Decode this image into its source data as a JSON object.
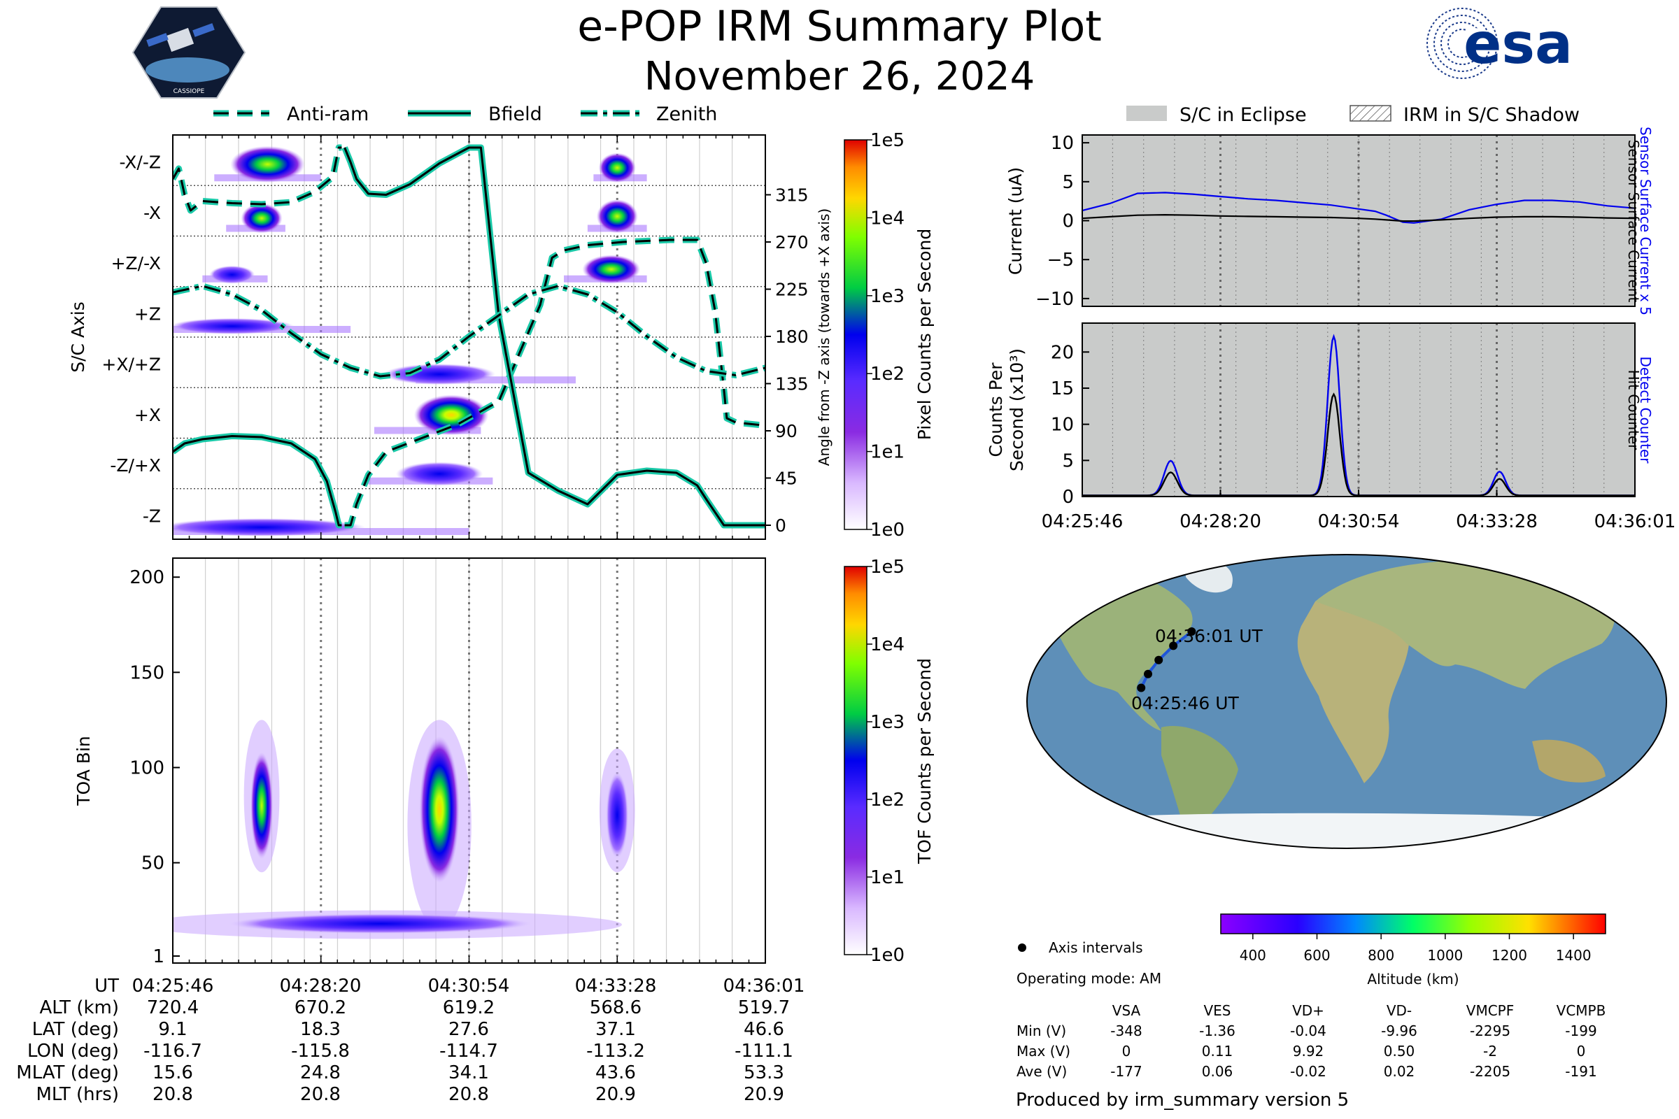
{
  "header": {
    "title": "e-POP IRM Summary Plot",
    "date": "November 26, 2024",
    "left_logo_text": "CASSIOPE",
    "right_logo_text": "esa"
  },
  "colors": {
    "accent_line": "#1ac9a8",
    "blue_trace": "#0000ee",
    "eclipse_fill": "#c9cbca",
    "map_ocean": "#5e8fb8",
    "map_land": "#9bb27a",
    "map_ice": "#f2f5f7"
  },
  "icons": [
    "satellite-logo-icon",
    "esa-logo-icon",
    "axis-interval-dot-icon"
  ],
  "axis_panel": {
    "legend": [
      "Anti-ram",
      "Bfield",
      "Zenith"
    ],
    "ylabel": "S/C Axis",
    "right_ylabel": "Angle from -Z axis (towards +X axis)",
    "y_categories": [
      "-X/-Z",
      "-X",
      "+Z/-X",
      "+Z",
      "+X/+Z",
      "+X",
      "-Z/+X",
      "-Z"
    ],
    "right_ticks": [
      "315",
      "270",
      "225",
      "180",
      "135",
      "90",
      "45",
      "0"
    ],
    "colorbar_label": "Pixel Counts per Second",
    "colorbar_ticks": [
      "1e5",
      "1e4",
      "1e3",
      "1e2",
      "1e1",
      "1e0"
    ]
  },
  "toa_panel": {
    "ylabel": "TOA Bin",
    "y_ticks": [
      "200",
      "150",
      "100",
      "50",
      "1"
    ],
    "colorbar_label": "TOF Counts per Second",
    "colorbar_ticks": [
      "1e5",
      "1e4",
      "1e3",
      "1e2",
      "1e1",
      "1e0"
    ]
  },
  "ephemeris": {
    "row_labels": [
      "UT",
      "ALT (km)",
      "LAT (deg)",
      "LON (deg)",
      "MLAT (deg)",
      "MLT (hrs)"
    ],
    "columns": [
      [
        "04:25:46",
        "720.4",
        "9.1",
        "-116.7",
        "15.6",
        "20.8"
      ],
      [
        "04:28:20",
        "670.2",
        "18.3",
        "-115.8",
        "24.8",
        "20.8"
      ],
      [
        "04:30:54",
        "619.2",
        "27.6",
        "-114.7",
        "34.1",
        "20.8"
      ],
      [
        "04:33:28",
        "568.6",
        "37.1",
        "-113.2",
        "43.6",
        "20.9"
      ],
      [
        "04:36:01",
        "519.7",
        "46.6",
        "-111.1",
        "53.3",
        "20.9"
      ]
    ]
  },
  "current_panel": {
    "legend": [
      "S/C in Eclipse",
      "IRM in S/C Shadow"
    ],
    "ylabel": "Current (uA)",
    "y_ticks": [
      "10",
      "5",
      "0",
      "−5",
      "−10"
    ],
    "right_label_blue": "Sensor Surface Current x 5",
    "right_label_black": "Sensor Surface Current"
  },
  "counts_panel": {
    "ylabel_line1": "Counts Per",
    "ylabel_line2": "Second (x10³)",
    "y_ticks": [
      "20",
      "15",
      "10",
      "5",
      "0"
    ],
    "right_label_blue": "Detect Counter",
    "right_label_black": "Hit Counter",
    "x_ticks": [
      "04:25:46",
      "04:28:20",
      "04:30:54",
      "04:33:28",
      "04:36:01"
    ]
  },
  "map_panel": {
    "start_label": "04:25:46 UT",
    "end_label": "04:36:01 UT",
    "altitude_label": "Altitude (km)",
    "altitude_ticks": [
      "400",
      "600",
      "800",
      "1000",
      "1200",
      "1400"
    ],
    "legend_text": "Axis intervals",
    "operating_mode": "Operating mode: AM"
  },
  "voltage_table": {
    "headers": [
      "VSA",
      "VES",
      "VD+",
      "VD-",
      "VMCPF",
      "VCMPB"
    ],
    "rows": [
      {
        "label": "Min (V)",
        "values": [
          "-348",
          "-1.36",
          "-0.04",
          "-9.96",
          "-2295",
          "-199"
        ]
      },
      {
        "label": "Max (V)",
        "values": [
          "0",
          "0.11",
          "9.92",
          "0.50",
          "-2",
          "0"
        ]
      },
      {
        "label": "Ave (V)",
        "values": [
          "-177",
          "0.06",
          "-0.02",
          "0.02",
          "-2205",
          "-191"
        ]
      }
    ]
  },
  "footer": "Produced by irm_summary version 5",
  "chart_data": [
    {
      "type": "heatmap",
      "name": "S/C axis panel",
      "x_range": [
        "04:25:46",
        "04:36:01"
      ],
      "y_categories": [
        "-X/-Z",
        "-X",
        "+Z/-X",
        "+Z",
        "+X/+Z",
        "+X",
        "-Z/+X",
        "-Z"
      ],
      "right_axis_range": [
        0,
        360
      ],
      "colorbar_range": [
        1,
        100000
      ],
      "colorbar_scale": "log",
      "blobs": [
        {
          "row": "-X/-Z",
          "t_start": 0.07,
          "t_end": 0.25,
          "peak_t": 0.16,
          "level": 2.9
        },
        {
          "row": "-X/-Z",
          "t_start": 0.71,
          "t_end": 0.8,
          "peak_t": 0.75,
          "level": 2.2
        },
        {
          "row": "-X",
          "t_start": 0.09,
          "t_end": 0.19,
          "peak_t": 0.15,
          "level": 2.2
        },
        {
          "row": "-X",
          "t_start": 0.7,
          "t_end": 0.8,
          "peak_t": 0.75,
          "level": 2.6
        },
        {
          "row": "+Z/-X",
          "t_start": 0.05,
          "t_end": 0.16,
          "peak_t": 0.1,
          "level": 1.0
        },
        {
          "row": "+Z/-X",
          "t_start": 0.66,
          "t_end": 0.8,
          "peak_t": 0.74,
          "level": 2.1
        },
        {
          "row": "+Z",
          "t_start": 0.0,
          "t_end": 0.3,
          "peak_t": 0.1,
          "level": 0.8
        },
        {
          "row": "+X/+Z",
          "t_start": 0.41,
          "t_end": 0.68,
          "peak_t": 0.45,
          "level": 1.3
        },
        {
          "row": "+X",
          "t_start": 0.34,
          "t_end": 0.52,
          "peak_t": 0.47,
          "level": 3.3
        },
        {
          "row": "-Z/+X",
          "t_start": 0.33,
          "t_end": 0.54,
          "peak_t": 0.45,
          "level": 1.6
        },
        {
          "row": "-Z",
          "t_start": 0.0,
          "t_end": 0.5,
          "peak_t": 0.15,
          "level": 1.0
        }
      ],
      "series": [
        {
          "name": "Anti-ram",
          "style": "dashed",
          "t": [
            0.0,
            0.01,
            0.02,
            0.03,
            0.05,
            0.1,
            0.15,
            0.2,
            0.24,
            0.27,
            0.28,
            0.285,
            0.29,
            0.3,
            0.31,
            0.33,
            0.36,
            0.42,
            0.48,
            0.55,
            0.62,
            0.64,
            0.66,
            0.7,
            0.76,
            0.8,
            0.84,
            0.885,
            0.9,
            0.915,
            0.93,
            0.935,
            0.95,
            1.0
          ],
          "angle": [
            330,
            340,
            315,
            300,
            309,
            307,
            306,
            308,
            318,
            332,
            360,
            360,
            0,
            0,
            20,
            48,
            70,
            83,
            96,
            118,
            210,
            255,
            262,
            267,
            270,
            271,
            272,
            272,
            250,
            205,
            130,
            102,
            98,
            95
          ]
        },
        {
          "name": "Bfield",
          "style": "solid",
          "t": [
            0.0,
            0.02,
            0.05,
            0.1,
            0.15,
            0.2,
            0.24,
            0.26,
            0.275,
            0.28,
            0.285,
            0.29,
            0.3,
            0.31,
            0.33,
            0.36,
            0.4,
            0.45,
            0.5,
            0.52,
            0.55,
            0.58,
            0.6,
            0.65,
            0.7,
            0.75,
            0.8,
            0.85,
            0.885,
            0.9,
            0.93,
            0.96,
            1.0
          ],
          "angle": [
            70,
            78,
            82,
            85,
            84,
            78,
            63,
            42,
            12,
            0,
            0,
            360,
            346,
            330,
            316,
            315,
            325,
            345,
            360,
            360,
            200,
            110,
            50,
            33,
            20,
            48,
            52,
            50,
            38,
            25,
            0,
            0,
            0
          ]
        },
        {
          "name": "Zenith",
          "style": "dashdot",
          "t": [
            0.0,
            0.05,
            0.1,
            0.15,
            0.2,
            0.25,
            0.3,
            0.35,
            0.4,
            0.45,
            0.5,
            0.55,
            0.6,
            0.65,
            0.7,
            0.75,
            0.8,
            0.85,
            0.9,
            0.95,
            1.0
          ],
          "angle": [
            222,
            228,
            220,
            205,
            183,
            163,
            150,
            142,
            145,
            158,
            180,
            200,
            220,
            228,
            220,
            203,
            180,
            160,
            147,
            143,
            150
          ]
        }
      ]
    },
    {
      "type": "heatmap",
      "name": "TOA panel",
      "ylabel": "TOA Bin",
      "ylim": [
        1,
        210
      ],
      "colorbar_range": [
        1,
        100000
      ],
      "colorbar_scale": "log",
      "blobs": [
        {
          "t_center": 0.15,
          "t_width": 0.05,
          "toa_center": 80,
          "toa_span": [
            45,
            125
          ],
          "peak_level": 2.2
        },
        {
          "t_center": 0.45,
          "t_width": 0.09,
          "toa_center": 78,
          "toa_span": [
            15,
            125
          ],
          "peak_level": 3.1
        },
        {
          "t_center": 0.75,
          "t_width": 0.05,
          "toa_center": 75,
          "toa_span": [
            45,
            110
          ],
          "peak_level": 1.8
        },
        {
          "t_center": 0.35,
          "t_width": 0.68,
          "toa_center": 18,
          "toa_span": [
            10,
            25
          ],
          "peak_level": 0.9
        }
      ]
    },
    {
      "type": "line",
      "name": "Current",
      "ylabel": "Current (uA)",
      "ylim": [
        -11,
        11
      ],
      "eclipse": true,
      "x": [
        0.0,
        0.05,
        0.1,
        0.15,
        0.2,
        0.25,
        0.3,
        0.35,
        0.4,
        0.45,
        0.5,
        0.53,
        0.55,
        0.58,
        0.6,
        0.65,
        0.7,
        0.75,
        0.8,
        0.85,
        0.9,
        0.95,
        1.0
      ],
      "series": [
        {
          "name": "Sensor Surface Current x 5",
          "values": [
            1.3,
            2.2,
            3.5,
            3.6,
            3.4,
            3.1,
            2.8,
            2.6,
            2.3,
            2.0,
            1.5,
            1.2,
            0.7,
            -0.2,
            -0.3,
            0.2,
            1.4,
            2.1,
            2.6,
            2.6,
            2.4,
            1.9,
            1.6
          ]
        },
        {
          "name": "Sensor Surface Current",
          "values": [
            0.3,
            0.5,
            0.7,
            0.75,
            0.7,
            0.6,
            0.55,
            0.5,
            0.45,
            0.4,
            0.3,
            0.2,
            0.1,
            -0.05,
            -0.05,
            0.1,
            0.3,
            0.45,
            0.5,
            0.5,
            0.45,
            0.35,
            0.3
          ]
        }
      ]
    },
    {
      "type": "line",
      "name": "Counts",
      "ylabel": "Counts Per Second (x10³)",
      "ylim": [
        0,
        24
      ],
      "eclipse": true,
      "x_ticks": [
        "04:25:46",
        "04:28:20",
        "04:30:54",
        "04:33:28",
        "04:36:01"
      ],
      "peaks": [
        {
          "t": 0.16,
          "detect": 4.8,
          "hit": 3.2,
          "width": 0.012
        },
        {
          "t": 0.455,
          "detect": 22,
          "hit": 14,
          "width": 0.011
        },
        {
          "t": 0.755,
          "detect": 3.3,
          "hit": 2.3,
          "width": 0.011
        }
      ],
      "series": [
        {
          "name": "Detect Counter"
        },
        {
          "name": "Hit Counter"
        }
      ]
    },
    {
      "type": "scatter",
      "name": "Orbit track",
      "projection": "Robinson",
      "points": [
        {
          "label": "04:25:46 UT",
          "lon": -116.7,
          "lat": 9.1
        },
        {
          "lon": -115.8,
          "lat": 18.3
        },
        {
          "lon": -114.7,
          "lat": 27.6
        },
        {
          "lon": -113.2,
          "lat": 37.1
        },
        {
          "label": "04:36:01 UT",
          "lon": -111.1,
          "lat": 46.6
        }
      ],
      "color_by": "Altitude (km)",
      "altitude_range": [
        300,
        1500
      ]
    }
  ]
}
